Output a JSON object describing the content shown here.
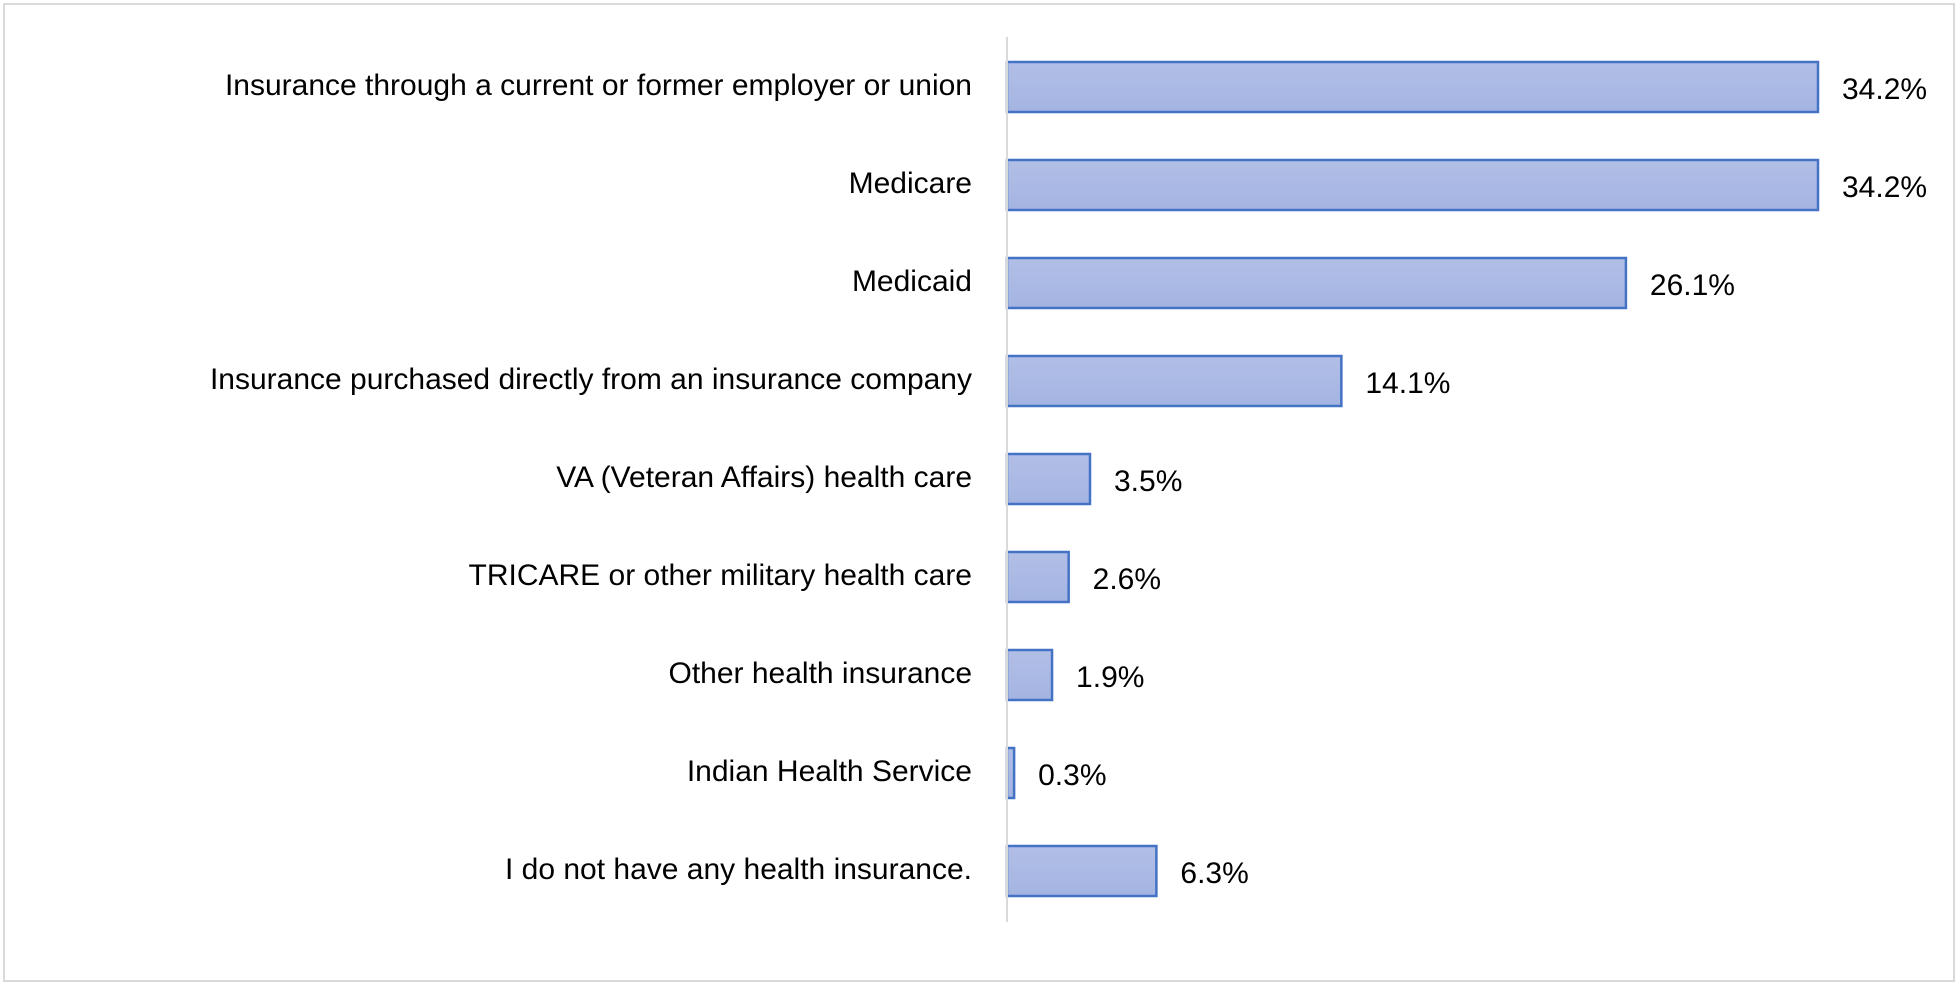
{
  "chart_data": {
    "type": "barh",
    "categories": [
      "Insurance through a current or former employer or union",
      "Medicare",
      "Medicaid",
      "Insurance purchased directly from an insurance company",
      "VA (Veteran Affairs) health care",
      "TRICARE or other military health care",
      "Other health insurance",
      "Indian Health Service",
      "I do not have any health insurance."
    ],
    "values": [
      34.2,
      34.2,
      26.1,
      14.1,
      3.5,
      2.6,
      1.9,
      0.3,
      6.3
    ],
    "value_labels": [
      "34.2%",
      "34.2%",
      "26.1%",
      "14.1%",
      "3.5%",
      "2.6%",
      "1.9%",
      "0.3%",
      "6.3%"
    ],
    "color": "#a4b4e2",
    "edgecolor": "#4472c4"
  }
}
